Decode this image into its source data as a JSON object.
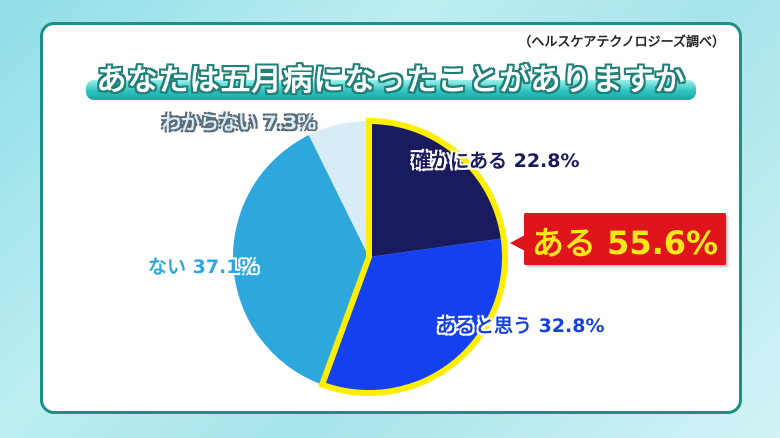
{
  "source_note": "（ヘルスケアテクノロジーズ調べ）",
  "title": "あなたは五月病になったことがありますか",
  "callout": {
    "label": "ある 55.6%",
    "bg_color": "#e0141b",
    "text_color": "#ffe81a"
  },
  "labels": {
    "sure": "確かにある 22.8%",
    "think": "あると思う 32.8%",
    "no": "ない 37.1%",
    "unknown": "わからない 7.3%"
  },
  "chart_data": {
    "type": "pie",
    "title": "あなたは五月病になったことがありますか",
    "categories": [
      "確かにある",
      "あると思う",
      "ない",
      "わからない"
    ],
    "values": [
      22.8,
      32.8,
      37.1,
      7.3
    ],
    "colors": [
      "#1a1a5e",
      "#1540f0",
      "#2ea8dc",
      "#d8ecf8"
    ],
    "start_angle": "12 o'clock",
    "direction": "clockwise",
    "highlight": {
      "categories": [
        "確かにある",
        "あると思う"
      ],
      "outline_color": "#ffee00",
      "combined_label": "ある",
      "combined_value": 55.6
    },
    "annotation": "（ヘルスケアテクノロジーズ調べ）"
  }
}
